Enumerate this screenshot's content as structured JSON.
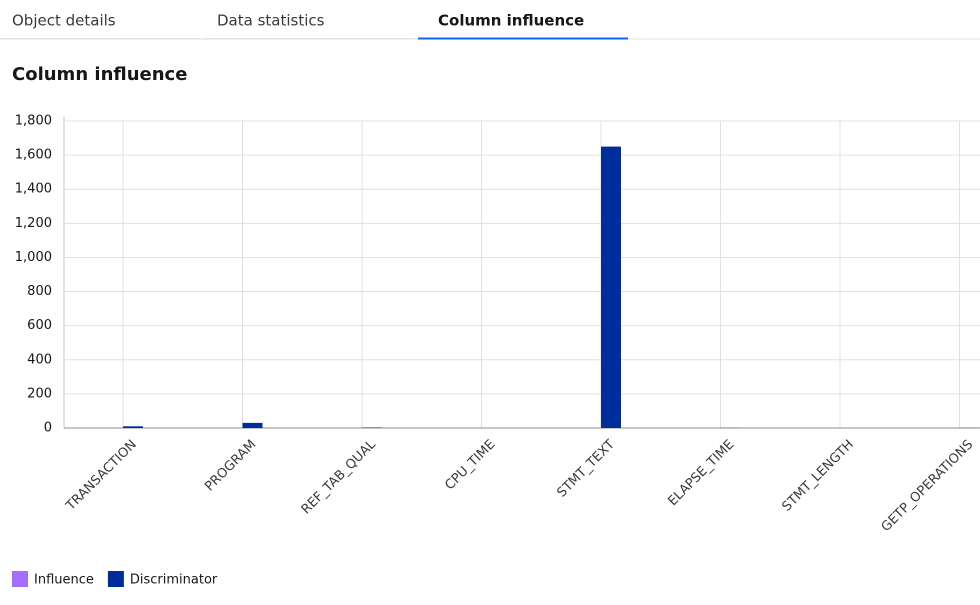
{
  "tabs": {
    "items": [
      "Object details",
      "Data statistics",
      "Column influence"
    ],
    "active": 2
  },
  "heading": "Column influence",
  "chart_data": {
    "type": "bar",
    "categories": [
      "TRANSACTION",
      "PROGRAM",
      "REF_TAB_QUAL",
      "CPU_TIME",
      "STMT_TEXT",
      "ELAPSE_TIME",
      "STMT_LENGTH",
      "GETP_OPERATIONS"
    ],
    "series": [
      {
        "name": "Influence",
        "color": "#a56eff",
        "values": [
          0,
          0,
          0,
          0,
          0,
          0,
          0,
          0
        ]
      },
      {
        "name": "Discriminator",
        "color": "#002d9c",
        "values": [
          10,
          30,
          3,
          0,
          1650,
          1,
          0,
          1
        ]
      }
    ],
    "ylim": [
      0,
      1800
    ],
    "yticks": [
      0,
      200,
      400,
      600,
      800,
      {
        "value": 1000,
        "label": "1,000"
      },
      {
        "value": 1200,
        "label": "1,200"
      },
      {
        "value": 1400,
        "label": "1,400"
      },
      {
        "value": 1600,
        "label": "1,600"
      },
      {
        "value": 1800,
        "label": "1,800"
      }
    ],
    "grid": true
  }
}
